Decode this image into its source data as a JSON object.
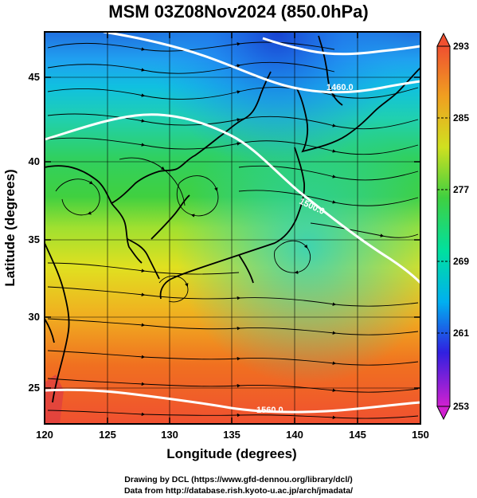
{
  "title": "MSM 03Z08Nov2024 (850.0hPa)",
  "x_axis": {
    "label": "Longitude (degrees)",
    "ticks": [
      "120",
      "125",
      "130",
      "135",
      "140",
      "145",
      "150"
    ],
    "range": [
      120,
      150
    ]
  },
  "y_axis": {
    "label": "Latitude  (degrees)",
    "ticks": [
      "25",
      "30",
      "35",
      "40",
      "45"
    ],
    "range": [
      22.4,
      47.6
    ]
  },
  "colorbar": {
    "ticks": [
      "253",
      "261",
      "269",
      "277",
      "285",
      "293"
    ],
    "range": [
      253,
      293
    ],
    "colors": [
      "#d020d0",
      "#3020e0",
      "#00b0f0",
      "#00e0a0",
      "#40d040",
      "#d0e020",
      "#f0a020",
      "#f05030"
    ]
  },
  "contours": {
    "labels": [
      "1460.0",
      "1500.0",
      "1560.0"
    ],
    "color": "#ffffff"
  },
  "footer": {
    "line1": "Drawing by DCL (https://www.gfd-dennou.org/library/dcl/)",
    "line2": "Data from http://database.rish.kyoto-u.ac.jp/arch/jmadata/"
  }
}
